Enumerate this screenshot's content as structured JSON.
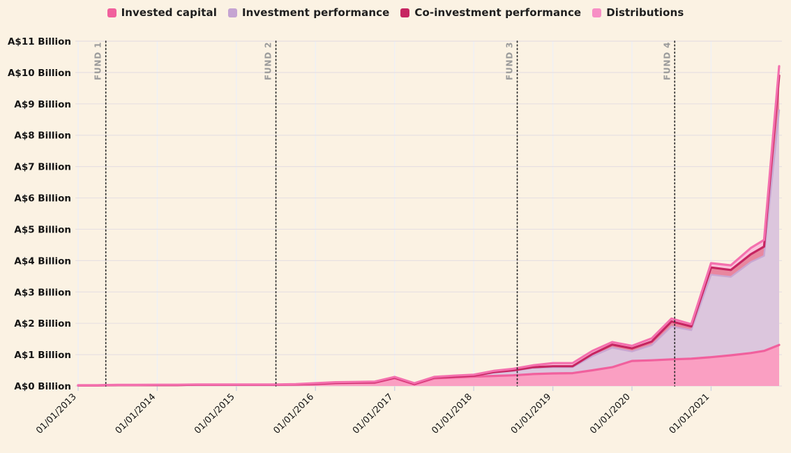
{
  "legend": [
    {
      "label": "Invested capital",
      "color": "#f1609d"
    },
    {
      "label": "Investment performance",
      "color": "#c5a4d2"
    },
    {
      "label": "Co-investment performance",
      "color": "#c62561"
    },
    {
      "label": "Distributions",
      "color": "#f78fc5"
    }
  ],
  "chart_data": {
    "type": "area",
    "stacked": true,
    "title": "",
    "xlabel": "",
    "ylabel": "",
    "unit": "A$ Billion",
    "ylim": [
      0,
      11
    ],
    "xlim": [
      2013.0,
      2021.86
    ],
    "grid": true,
    "legend_position": "top",
    "y_ticks": [
      0,
      1,
      2,
      3,
      4,
      5,
      6,
      7,
      8,
      9,
      10,
      11
    ],
    "y_tick_labels": [
      "A$0 Billion",
      "A$1 Billion",
      "A$2 Billion",
      "A$3 Billion",
      "A$4 Billion",
      "A$5 Billion",
      "A$6 Billion",
      "A$7 Billion",
      "A$8 Billion",
      "A$9 Billion",
      "A$10 Billion",
      "A$11 Billion"
    ],
    "x_ticks": [
      2013,
      2014,
      2015,
      2016,
      2017,
      2018,
      2019,
      2020,
      2021
    ],
    "x_tick_labels": [
      "01/01/2013",
      "01/01/2014",
      "01/01/2015",
      "01/01/2016",
      "01/01/2017",
      "01/01/2018",
      "01/01/2019",
      "01/01/2020",
      "01/01/2021"
    ],
    "x": [
      2013.0,
      2013.25,
      2013.5,
      2013.75,
      2014.0,
      2014.25,
      2014.5,
      2014.75,
      2015.0,
      2015.25,
      2015.5,
      2015.75,
      2016.0,
      2016.25,
      2016.5,
      2016.75,
      2017.0,
      2017.25,
      2017.5,
      2017.75,
      2018.0,
      2018.25,
      2018.5,
      2018.75,
      2019.0,
      2019.25,
      2019.5,
      2019.75,
      2020.0,
      2020.25,
      2020.5,
      2020.75,
      2021.0,
      2021.25,
      2021.5,
      2021.67,
      2021.86
    ],
    "series": [
      {
        "name": "Invested capital",
        "line_color": "#f1609d",
        "fill_color": "#fa9fc2",
        "values": [
          0.02,
          0.02,
          0.03,
          0.03,
          0.03,
          0.03,
          0.04,
          0.04,
          0.04,
          0.04,
          0.04,
          0.05,
          0.06,
          0.09,
          0.1,
          0.1,
          0.25,
          0.05,
          0.24,
          0.27,
          0.3,
          0.32,
          0.34,
          0.38,
          0.4,
          0.41,
          0.5,
          0.6,
          0.8,
          0.82,
          0.85,
          0.87,
          0.92,
          0.98,
          1.05,
          1.12,
          1.31
        ]
      },
      {
        "name": "Investment performance",
        "line_color": "#c9a7d2",
        "fill_color": "#dcc6dd",
        "values": [
          0,
          0,
          0,
          0,
          0,
          0,
          0,
          0,
          0,
          0,
          0,
          0,
          0.01,
          0.01,
          0.01,
          0.01,
          0.01,
          0.01,
          0.02,
          0.02,
          0.02,
          0.1,
          0.14,
          0.2,
          0.2,
          0.19,
          0.45,
          0.62,
          0.3,
          0.48,
          1.05,
          0.91,
          2.63,
          2.5,
          2.9,
          3.03,
          7.49
        ]
      },
      {
        "name": "Co-investment performance",
        "line_color": "#c62561",
        "fill_color": "#e8879f",
        "values": [
          0,
          0,
          0,
          0,
          0,
          0,
          0,
          0,
          0,
          0,
          0,
          0,
          0,
          0,
          0,
          0.01,
          0.01,
          0.01,
          0.01,
          0.01,
          0.01,
          0.02,
          0.02,
          0.02,
          0.03,
          0.03,
          0.07,
          0.1,
          0.1,
          0.12,
          0.16,
          0.12,
          0.23,
          0.22,
          0.25,
          0.3,
          1.1
        ]
      },
      {
        "name": "Distributions",
        "line_color": "#f470ae",
        "fill_color": "#fac3db",
        "values": [
          0.005,
          0.005,
          0.005,
          0.005,
          0.01,
          0.01,
          0.01,
          0.01,
          0.01,
          0.01,
          0.01,
          0.01,
          0.02,
          0.02,
          0.02,
          0.02,
          0.02,
          0.02,
          0.02,
          0.03,
          0.03,
          0.04,
          0.05,
          0.06,
          0.1,
          0.1,
          0.1,
          0.08,
          0.08,
          0.1,
          0.09,
          0.07,
          0.14,
          0.15,
          0.2,
          0.21,
          0.3
        ]
      }
    ],
    "fund_markers": [
      {
        "label": "FUND 1",
        "x": 2013.35
      },
      {
        "label": "FUND 2",
        "x": 2015.5
      },
      {
        "label": "FUND 3",
        "x": 2018.55
      },
      {
        "label": "FUND 4",
        "x": 2020.54
      }
    ]
  },
  "colors": {
    "background": "#fbf2e3",
    "gridline": "#e7e0e2",
    "vertical_gridline": "#edf0f8",
    "tick": "#ccd3e3",
    "fund_line": "#2e2e2e",
    "fund_label": "#9b9b9b",
    "axis_text": "#141414"
  }
}
